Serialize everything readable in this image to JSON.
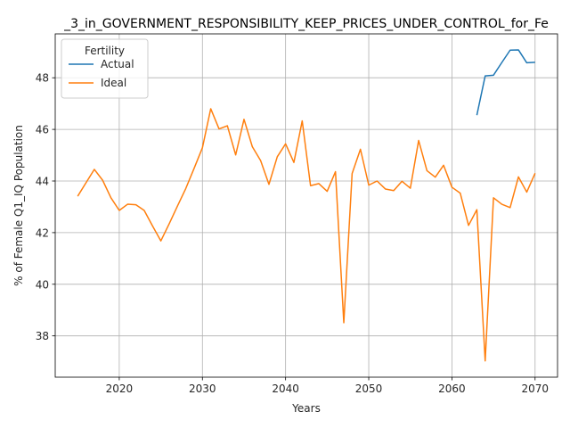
{
  "chart_data": {
    "type": "line",
    "title": "_3_in_GOVERNMENT_RESPONSIBILITY_KEEP_PRICES_UNDER_CONTROL_for_Fe",
    "xlabel": "Years",
    "ylabel": "% of Female Q1_IQ Population",
    "xlim": [
      2012.3,
      2072.7
    ],
    "ylim": [
      36.4,
      49.7
    ],
    "xticks": [
      2020,
      2030,
      2040,
      2050,
      2060,
      2070
    ],
    "yticks": [
      38,
      40,
      42,
      44,
      46,
      48
    ],
    "grid": true,
    "legend": {
      "title": "Fertility",
      "placement": "top-left"
    },
    "series": [
      {
        "name": "Actual",
        "color": "#1f77b4",
        "points": [
          [
            2063,
            46.55
          ],
          [
            2064,
            48.07
          ],
          [
            2065,
            48.1
          ],
          [
            2066,
            48.59
          ],
          [
            2067,
            49.07
          ],
          [
            2068,
            49.08
          ],
          [
            2069,
            48.58
          ],
          [
            2070,
            48.6
          ]
        ]
      },
      {
        "name": "Ideal",
        "color": "#ff7f0e",
        "points": [
          [
            2015,
            43.41
          ],
          [
            2016,
            43.93
          ],
          [
            2017,
            44.45
          ],
          [
            2018,
            44.03
          ],
          [
            2019,
            43.35
          ],
          [
            2020,
            42.86
          ],
          [
            2021,
            43.1
          ],
          [
            2022,
            43.08
          ],
          [
            2023,
            42.86
          ],
          [
            2024,
            42.26
          ],
          [
            2025,
            41.68
          ],
          [
            2026,
            42.34
          ],
          [
            2027,
            43.03
          ],
          [
            2028,
            43.71
          ],
          [
            2029,
            44.49
          ],
          [
            2030,
            45.29
          ],
          [
            2031,
            46.8
          ],
          [
            2032,
            46.02
          ],
          [
            2033,
            46.14
          ],
          [
            2034,
            45.01
          ],
          [
            2035,
            46.39
          ],
          [
            2036,
            45.33
          ],
          [
            2037,
            44.79
          ],
          [
            2038,
            43.87
          ],
          [
            2039,
            44.94
          ],
          [
            2040,
            45.44
          ],
          [
            2041,
            44.72
          ],
          [
            2042,
            46.33
          ],
          [
            2043,
            43.82
          ],
          [
            2044,
            43.9
          ],
          [
            2045,
            43.6
          ],
          [
            2046,
            44.36
          ],
          [
            2047,
            38.51
          ],
          [
            2048,
            44.29
          ],
          [
            2049,
            45.23
          ],
          [
            2050,
            43.84
          ],
          [
            2051,
            44.0
          ],
          [
            2052,
            43.69
          ],
          [
            2053,
            43.63
          ],
          [
            2054,
            43.99
          ],
          [
            2055,
            43.72
          ],
          [
            2056,
            45.57
          ],
          [
            2057,
            44.4
          ],
          [
            2058,
            44.15
          ],
          [
            2059,
            44.61
          ],
          [
            2060,
            43.76
          ],
          [
            2061,
            43.53
          ],
          [
            2062,
            42.28
          ],
          [
            2063,
            42.89
          ],
          [
            2064,
            37.03
          ],
          [
            2065,
            43.35
          ],
          [
            2066,
            43.1
          ],
          [
            2067,
            42.97
          ],
          [
            2068,
            44.16
          ],
          [
            2069,
            43.57
          ],
          [
            2070,
            44.3
          ]
        ]
      }
    ]
  }
}
